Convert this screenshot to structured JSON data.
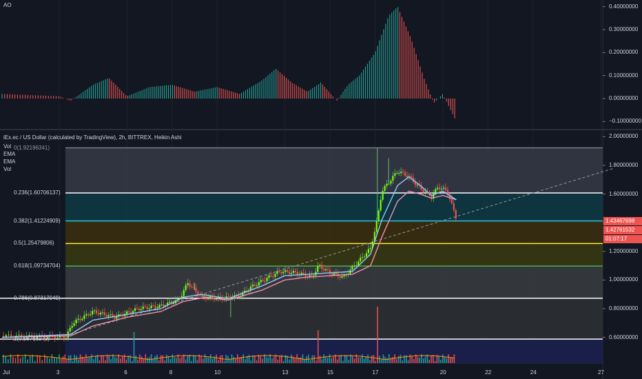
{
  "ao_pane": {
    "title": "AO",
    "ticks": [
      "0.40000000",
      "0.30000000",
      "0.20000000",
      "0.10000000",
      "0.00000000",
      "−0.10000000"
    ]
  },
  "main_pane": {
    "title": "iEx.ec / US Dollar (calculated by TradingView), 2h, BITTREX, Heikin Ashi",
    "indicators": [
      "Vol",
      "EMA",
      "EMA",
      "Vol"
    ],
    "ticks": [
      "2.00000000",
      "1.80000000",
      "1.60000000",
      "1.40000000",
      "1.20000000",
      "1.00000000",
      "0.80000000",
      "0.60000000"
    ],
    "price_tags": [
      {
        "value": "1.43467698",
        "color": "#ef5350"
      },
      {
        "value": "1.42761532",
        "color": "#ef5350"
      },
      {
        "value": "01:07:17",
        "color": "#ef5350"
      }
    ]
  },
  "fib_levels": [
    {
      "label": "0(1.92196341)",
      "price": 1.92196341,
      "color": "#787b86"
    },
    {
      "label": "0.236(1.60706137)",
      "price": 1.60706137,
      "color": "#ffffff"
    },
    {
      "label": "0.382(1.41224909)",
      "price": 1.41224909,
      "color": "#26c6da"
    },
    {
      "label": "0.5(1.25479806)",
      "price": 1.25479806,
      "color": "#ffeb3b"
    },
    {
      "label": "0.618(1.09734704)",
      "price": 1.09734704,
      "color": "#4caf50"
    },
    {
      "label": "0.786(0.87317949)",
      "price": 0.87317949,
      "color": "#ffffff"
    },
    {
      "label": "1(0.58763272)",
      "price": 0.58763272,
      "color": "#ffffff"
    }
  ],
  "x_axis": {
    "ticks": [
      "Jul",
      "3",
      "6",
      "8",
      "10",
      "13",
      "15",
      "17",
      "20",
      "22",
      "24",
      "27"
    ]
  },
  "chart_data": {
    "type": "candlestick",
    "y_range": [
      0.42,
      2.04
    ],
    "fib_range": [
      0.58763272,
      1.92196341
    ],
    "x_range_days": [
      1,
      27.6
    ],
    "price_path": [
      [
        1,
        0.61
      ],
      [
        3.3,
        0.6
      ],
      [
        3.6,
        0.7
      ],
      [
        4.5,
        0.78
      ],
      [
        5.5,
        0.74
      ],
      [
        6.5,
        0.8
      ],
      [
        7.5,
        0.82
      ],
      [
        8.3,
        0.86
      ],
      [
        8.7,
        0.98
      ],
      [
        9.3,
        0.88
      ],
      [
        10.2,
        0.87
      ],
      [
        11,
        0.89
      ],
      [
        11.5,
        0.95
      ],
      [
        12.3,
        1.02
      ],
      [
        12.8,
        1.06
      ],
      [
        13.5,
        1.05
      ],
      [
        14.2,
        1.02
      ],
      [
        14.5,
        1.1
      ],
      [
        15.0,
        1.05
      ],
      [
        15.6,
        1.02
      ],
      [
        16.2,
        1.12
      ],
      [
        16.8,
        1.22
      ],
      [
        17.1,
        1.42
      ],
      [
        17.3,
        1.62
      ],
      [
        17.6,
        1.68
      ],
      [
        18.0,
        1.76
      ],
      [
        18.5,
        1.72
      ],
      [
        19.0,
        1.64
      ],
      [
        19.5,
        1.58
      ],
      [
        19.8,
        1.65
      ],
      [
        20.2,
        1.62
      ],
      [
        20.6,
        1.43
      ]
    ],
    "ema_fast": [
      [
        1,
        0.6
      ],
      [
        3.5,
        0.62
      ],
      [
        4.5,
        0.72
      ],
      [
        6.0,
        0.76
      ],
      [
        7.5,
        0.8
      ],
      [
        8.5,
        0.88
      ],
      [
        9.3,
        0.9
      ],
      [
        10.5,
        0.87
      ],
      [
        12.0,
        0.96
      ],
      [
        13.0,
        1.03
      ],
      [
        14.0,
        1.04
      ],
      [
        15.0,
        1.05
      ],
      [
        16.0,
        1.06
      ],
      [
        16.8,
        1.18
      ],
      [
        17.3,
        1.42
      ],
      [
        18.0,
        1.66
      ],
      [
        18.5,
        1.72
      ],
      [
        19.0,
        1.66
      ],
      [
        19.5,
        1.59
      ],
      [
        20.0,
        1.62
      ],
      [
        20.6,
        1.56
      ]
    ],
    "ema_slow": [
      [
        1,
        0.6
      ],
      [
        3.5,
        0.61
      ],
      [
        4.5,
        0.68
      ],
      [
        6.0,
        0.74
      ],
      [
        7.5,
        0.78
      ],
      [
        8.5,
        0.85
      ],
      [
        9.5,
        0.88
      ],
      [
        10.5,
        0.86
      ],
      [
        12.0,
        0.93
      ],
      [
        13.0,
        1.0
      ],
      [
        14.0,
        1.02
      ],
      [
        15.0,
        1.03
      ],
      [
        16.0,
        1.04
      ],
      [
        16.8,
        1.1
      ],
      [
        17.3,
        1.3
      ],
      [
        18.0,
        1.55
      ],
      [
        18.5,
        1.62
      ],
      [
        19.0,
        1.6
      ],
      [
        19.5,
        1.57
      ],
      [
        20.0,
        1.59
      ],
      [
        20.6,
        1.56
      ]
    ],
    "trendline": {
      "from": [
        3.5,
        0.62
      ],
      "to": [
        27.6,
        1.78
      ]
    },
    "ao_range": [
      -0.12,
      0.42
    ],
    "ao_path": [
      [
        1,
        0.02
      ],
      [
        3.0,
        0.01
      ],
      [
        3.5,
        -0.01
      ],
      [
        4.5,
        0.06
      ],
      [
        5.2,
        0.09
      ],
      [
        6.0,
        0.01
      ],
      [
        7.0,
        0.05
      ],
      [
        8.0,
        0.06
      ],
      [
        9.0,
        0.03
      ],
      [
        10.0,
        0.05
      ],
      [
        11.0,
        0.02
      ],
      [
        12.0,
        0.08
      ],
      [
        12.6,
        0.13
      ],
      [
        13.3,
        0.07
      ],
      [
        14.0,
        0.03
      ],
      [
        14.6,
        0.07
      ],
      [
        15.3,
        -0.01
      ],
      [
        15.8,
        0.06
      ],
      [
        16.3,
        0.1
      ],
      [
        17.0,
        0.2
      ],
      [
        17.6,
        0.36
      ],
      [
        18.0,
        0.4
      ],
      [
        18.6,
        0.26
      ],
      [
        19.2,
        0.08
      ],
      [
        19.6,
        -0.02
      ],
      [
        20.0,
        0.02
      ],
      [
        20.6,
        -0.1
      ]
    ]
  }
}
